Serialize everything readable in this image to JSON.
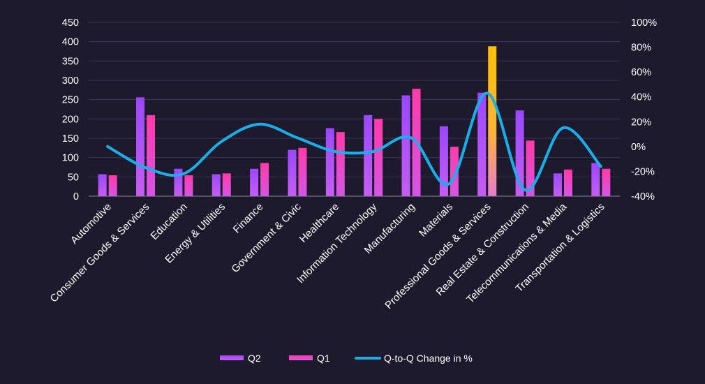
{
  "chart_data": {
    "type": "bar",
    "categories": [
      "Automotive",
      "Consumer Goods & Services",
      "Education",
      "Energy & Utilities",
      "Finance",
      "Government & Civic",
      "Healthcare",
      "Information Technology",
      "Manufacturing",
      "Materials",
      "Professional Goods & Services",
      "Real Estate & Construction",
      "Telecommunications & Media",
      "Transportation & Logistics"
    ],
    "series": [
      {
        "name": "Q2",
        "kind": "bar",
        "axis": "left",
        "color": "#a64dff",
        "values": [
          57,
          256,
          71,
          57,
          71,
          120,
          176,
          210,
          261,
          181,
          268,
          222,
          59,
          86
        ]
      },
      {
        "name": "Q1",
        "kind": "bar",
        "axis": "left",
        "color": "#f23fbd",
        "values": [
          54,
          210,
          54,
          59,
          86,
          125,
          166,
          200,
          278,
          128,
          388,
          144,
          69,
          71
        ]
      },
      {
        "name": "Q-to-Q Change in %",
        "kind": "line",
        "axis": "right",
        "color": "#1aaee8",
        "values": [
          0,
          -17,
          -22,
          4,
          18,
          7,
          -4,
          -4,
          7,
          -30,
          43,
          -35,
          15,
          -16
        ]
      }
    ],
    "highlight": {
      "category_index": 10,
      "series": "Q1",
      "color": "#ffc20e"
    },
    "y_left": {
      "ylim": [
        0,
        450
      ],
      "ticks": [
        "0",
        "50",
        "100",
        "150",
        "200",
        "250",
        "300",
        "350",
        "400",
        "450"
      ]
    },
    "y_right": {
      "ylim": [
        -40,
        100
      ],
      "ticks": [
        "-40%",
        "-20%",
        "0%",
        "20%",
        "40%",
        "60%",
        "80%",
        "100%"
      ]
    },
    "grid": true,
    "legend_position": "bottom-center",
    "title": "",
    "xlabel": "",
    "ylabel": ""
  }
}
